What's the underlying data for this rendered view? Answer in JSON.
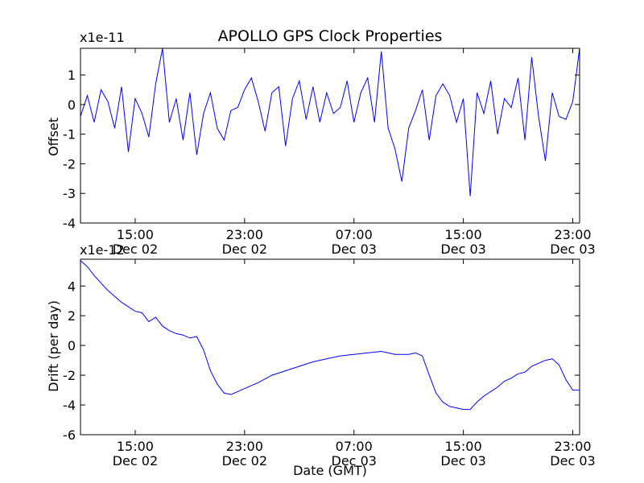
{
  "figure": {
    "title": "APOLLO GPS Clock Properties"
  },
  "chart_data": [
    {
      "type": "line",
      "xlabel": "",
      "ylabel": "Offset",
      "y_multiplier": "x1e-11",
      "ylim": [
        -4,
        1.9
      ],
      "y_ticks": [
        -4,
        -3,
        -2,
        -1,
        0,
        1
      ],
      "y_tick_labels": [
        "-4",
        "-3",
        "-2",
        "-1",
        "0",
        "1"
      ],
      "x_ticks": [
        "2014-12-02T15:00",
        "2014-12-02T23:00",
        "2014-12-03T07:00",
        "2014-12-03T15:00",
        "2014-12-03T23:00"
      ],
      "x_tick_labels": [
        [
          "15:00",
          "Dec 02"
        ],
        [
          "23:00",
          "Dec 02"
        ],
        [
          "07:00",
          "Dec 03"
        ],
        [
          "15:00",
          "Dec 03"
        ],
        [
          "23:00",
          "Dec 03"
        ]
      ],
      "xlim": [
        "2014-12-02T11:00",
        "2014-12-03T23:30"
      ],
      "color": "#0000ff",
      "series": [
        {
          "x_hours_from_start": [
            0,
            0.5,
            1,
            1.5,
            2,
            2.5,
            3,
            3.5,
            4,
            4.5,
            5,
            5.5,
            6,
            6.5,
            7,
            7.5,
            8,
            8.5,
            9,
            9.5,
            10,
            10.5,
            11,
            11.5,
            12,
            12.5,
            13,
            13.5,
            14,
            14.5,
            15,
            15.5,
            16,
            16.5,
            17,
            17.5,
            18,
            18.5,
            19,
            19.5,
            20,
            20.5,
            21,
            21.5,
            22,
            22.5,
            23,
            23.5,
            24,
            24.5,
            25,
            25.5,
            26,
            26.5,
            27,
            27.5,
            28,
            28.5,
            29,
            29.5,
            30,
            30.5,
            31,
            31.5,
            32,
            32.5,
            33,
            33.5,
            34,
            34.5,
            35,
            35.5,
            36,
            36.5
          ],
          "y": [
            -0.4,
            0.3,
            -0.6,
            0.5,
            0.1,
            -0.8,
            0.6,
            -1.6,
            0.2,
            -0.3,
            -1.1,
            0.7,
            1.9,
            -0.6,
            0.2,
            -1.2,
            0.4,
            -1.7,
            -0.3,
            0.4,
            -0.8,
            -1.2,
            -0.2,
            -0.1,
            0.5,
            0.9,
            0.1,
            -0.9,
            0.4,
            0.6,
            -1.4,
            0.2,
            0.8,
            -0.5,
            0.6,
            -0.6,
            0.4,
            -0.3,
            -0.1,
            0.8,
            -0.6,
            0.4,
            0.9,
            -0.6,
            1.8,
            -0.8,
            -1.5,
            -2.6,
            -0.8,
            -0.2,
            0.5,
            -1.2,
            0.3,
            0.7,
            0.3,
            -0.6,
            0.2,
            -3.1,
            0.4,
            -0.3,
            0.8,
            -1.0,
            0.2,
            -0.1,
            0.9,
            -1.2,
            1.6,
            -0.4,
            -1.9,
            0.4,
            -0.4,
            -0.5,
            0.1,
            1.9
          ]
        }
      ]
    },
    {
      "type": "line",
      "xlabel": "Date (GMT)",
      "ylabel": "Drift (per day)",
      "y_multiplier": "x1e-12",
      "ylim": [
        -6,
        5.8
      ],
      "y_ticks": [
        -6,
        -4,
        -2,
        0,
        2,
        4
      ],
      "y_tick_labels": [
        "-6",
        "-4",
        "-2",
        "0",
        "2",
        "4"
      ],
      "x_ticks": [
        "2014-12-02T15:00",
        "2014-12-02T23:00",
        "2014-12-03T07:00",
        "2014-12-03T15:00",
        "2014-12-03T23:00"
      ],
      "x_tick_labels": [
        [
          "15:00",
          "Dec 02"
        ],
        [
          "23:00",
          "Dec 02"
        ],
        [
          "07:00",
          "Dec 03"
        ],
        [
          "15:00",
          "Dec 03"
        ],
        [
          "23:00",
          "Dec 03"
        ]
      ],
      "xlim": [
        "2014-12-02T11:00",
        "2014-12-03T23:30"
      ],
      "color": "#0000ff",
      "series": [
        {
          "x_hours_from_start": [
            0,
            0.5,
            1,
            1.5,
            2,
            2.5,
            3,
            3.5,
            4,
            4.5,
            5,
            5.5,
            6,
            6.5,
            7,
            7.5,
            8,
            8.5,
            9,
            9.5,
            10,
            10.5,
            11,
            11.5,
            12,
            13,
            14,
            15,
            16,
            17,
            18,
            19,
            20,
            21,
            22,
            23,
            24,
            24.5,
            25,
            25.5,
            26,
            26.5,
            27,
            27.5,
            28,
            28.5,
            29,
            29.5,
            30,
            30.5,
            31,
            31.5,
            32,
            32.5,
            33,
            33.5,
            34,
            34.5,
            35,
            35.5,
            36,
            36.5
          ],
          "y": [
            5.7,
            5.3,
            4.7,
            4.2,
            3.7,
            3.3,
            2.9,
            2.6,
            2.3,
            2.2,
            1.6,
            1.9,
            1.3,
            1.0,
            0.8,
            0.7,
            0.5,
            0.6,
            -0.3,
            -1.7,
            -2.6,
            -3.2,
            -3.3,
            -3.1,
            -2.9,
            -2.5,
            -2.0,
            -1.7,
            -1.4,
            -1.1,
            -0.9,
            -0.7,
            -0.6,
            -0.5,
            -0.4,
            -0.6,
            -0.6,
            -0.5,
            -0.7,
            -2.0,
            -3.2,
            -3.8,
            -4.1,
            -4.2,
            -4.3,
            -4.3,
            -3.8,
            -3.4,
            -3.1,
            -2.8,
            -2.4,
            -2.2,
            -1.9,
            -1.8,
            -1.4,
            -1.2,
            -1.0,
            -0.9,
            -1.3,
            -2.3,
            -3.0,
            -3.0
          ]
        }
      ]
    }
  ]
}
